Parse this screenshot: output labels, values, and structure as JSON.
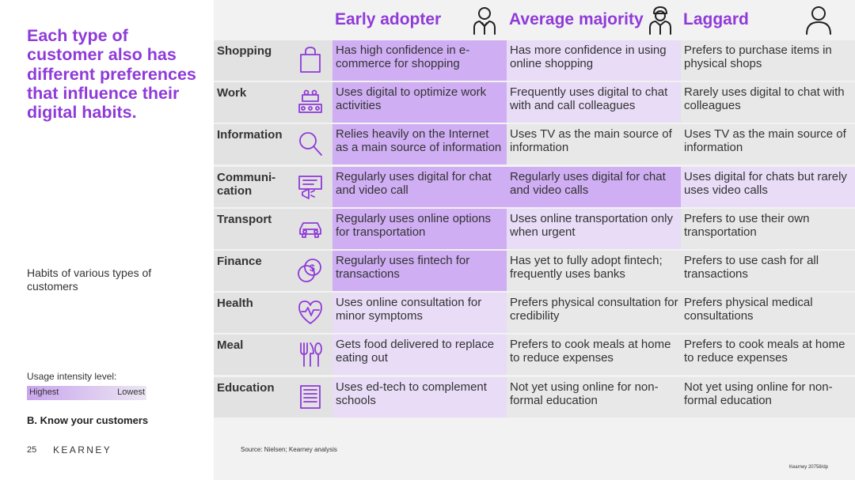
{
  "headline": "Each type of customer also has different preferences that influence their digital habits.",
  "subtitle": "Habits of various types of customers",
  "legend": {
    "label": "Usage intensity level:",
    "highest": "Highest",
    "lowest": "Lowest"
  },
  "section": "B. Know your customers",
  "page_number": "25",
  "brand": "KEARNEY",
  "source": "Source: Nielsen; Kearney analysis",
  "code": "Kearney 20758/dp",
  "columns": [
    {
      "title": "Early adopter",
      "icon": "businessman-icon"
    },
    {
      "title": "Average majority",
      "icon": "worker-icon"
    },
    {
      "title": "Laggard",
      "icon": "person-icon"
    }
  ],
  "rows": [
    {
      "label": "Shopping",
      "icon": "shopping-bag-icon",
      "cells": [
        "Has high confidence in e-commerce for shopping",
        "Has more confidence in using online shopping",
        "Prefers to purchase items in physical shops"
      ],
      "levels": [
        1,
        2,
        3
      ]
    },
    {
      "label": "Work",
      "icon": "meeting-icon",
      "cells": [
        "Uses digital to optimize work activities",
        "Frequently uses digital to chat with and call colleagues",
        "Rarely uses digital to chat with colleagues"
      ],
      "levels": [
        1,
        2,
        3
      ]
    },
    {
      "label": "Information",
      "icon": "magnifier-icon",
      "cells": [
        "Relies heavily on the Internet as a main source of information",
        "Uses TV as the main source of information",
        "Uses TV as the main source of information"
      ],
      "levels": [
        1,
        3,
        3
      ]
    },
    {
      "label": "Communi-\ncation",
      "icon": "chat-megaphone-icon",
      "cells": [
        "Regularly uses digital for chat and video call",
        "Regularly uses digital for chat and video calls",
        "Uses digital for chats but rarely uses video calls"
      ],
      "levels": [
        1,
        1,
        2
      ]
    },
    {
      "label": "Transport",
      "icon": "car-icon",
      "cells": [
        "Regularly uses online options for transportation",
        "Uses online transportation only when urgent",
        "Prefers to use their own transportation"
      ],
      "levels": [
        1,
        2,
        3
      ]
    },
    {
      "label": "Finance",
      "icon": "coins-icon",
      "cells": [
        "Regularly uses fintech for transactions",
        "Has yet to fully adopt fintech; frequently uses banks",
        "Prefers to use cash for all transactions"
      ],
      "levels": [
        1,
        3,
        3
      ]
    },
    {
      "label": "Health",
      "icon": "heartbeat-icon",
      "cells": [
        "Uses online consultation for minor symptoms",
        "Prefers physical consultation for credibility",
        "Prefers physical medical consultations"
      ],
      "levels": [
        2,
        3,
        3
      ]
    },
    {
      "label": "Meal",
      "icon": "cutlery-icon",
      "cells": [
        "Gets food delivered to replace eating out",
        "Prefers to cook meals at home to reduce expenses",
        "Prefers to cook meals at home to reduce expenses"
      ],
      "levels": [
        2,
        3,
        3
      ]
    },
    {
      "label": "Education",
      "icon": "book-icon",
      "cells": [
        "Uses ed-tech to complement schools",
        "Not yet using online for non-formal education",
        "Not yet using online for non-formal education"
      ],
      "levels": [
        2,
        3,
        3
      ]
    }
  ]
}
